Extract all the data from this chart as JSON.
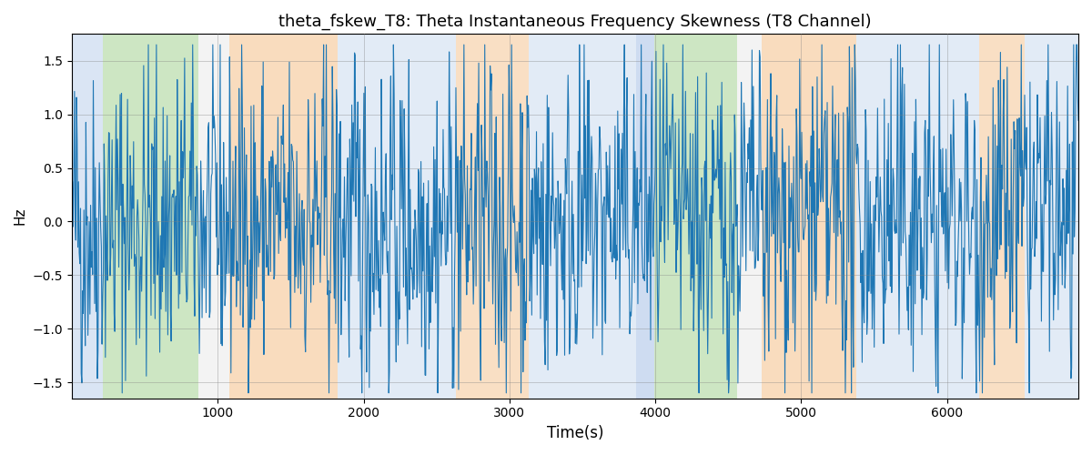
{
  "title": "theta_fskew_T8: Theta Instantaneous Frequency Skewness (T8 Channel)",
  "xlabel": "Time(s)",
  "ylabel": "Hz",
  "ylim": [
    -1.65,
    1.75
  ],
  "xlim": [
    0,
    6900
  ],
  "line_color": "#1f77b4",
  "line_width": 0.8,
  "background_regions": [
    {
      "xstart": 0,
      "xend": 210,
      "color": "#aec6e8",
      "alpha": 0.45
    },
    {
      "xstart": 210,
      "xend": 870,
      "color": "#90c97a",
      "alpha": 0.45
    },
    {
      "xstart": 870,
      "xend": 1080,
      "color": "#d3d3d3",
      "alpha": 0.25
    },
    {
      "xstart": 1080,
      "xend": 1820,
      "color": "#f5c08a",
      "alpha": 0.55
    },
    {
      "xstart": 1820,
      "xend": 2630,
      "color": "#aec6e8",
      "alpha": 0.35
    },
    {
      "xstart": 2630,
      "xend": 3130,
      "color": "#f5c08a",
      "alpha": 0.5
    },
    {
      "xstart": 3130,
      "xend": 3870,
      "color": "#aec6e8",
      "alpha": 0.35
    },
    {
      "xstart": 3870,
      "xend": 3990,
      "color": "#aec6e8",
      "alpha": 0.6
    },
    {
      "xstart": 3990,
      "xend": 4560,
      "color": "#90c97a",
      "alpha": 0.45
    },
    {
      "xstart": 4560,
      "xend": 4730,
      "color": "#d3d3d3",
      "alpha": 0.25
    },
    {
      "xstart": 4730,
      "xend": 5380,
      "color": "#f5c08a",
      "alpha": 0.55
    },
    {
      "xstart": 5380,
      "xend": 6220,
      "color": "#aec6e8",
      "alpha": 0.35
    },
    {
      "xstart": 6220,
      "xend": 6530,
      "color": "#f5c08a",
      "alpha": 0.5
    },
    {
      "xstart": 6530,
      "xend": 6900,
      "color": "#aec6e8",
      "alpha": 0.35
    }
  ],
  "seed": 42,
  "title_fontsize": 13,
  "n_points": 1500
}
